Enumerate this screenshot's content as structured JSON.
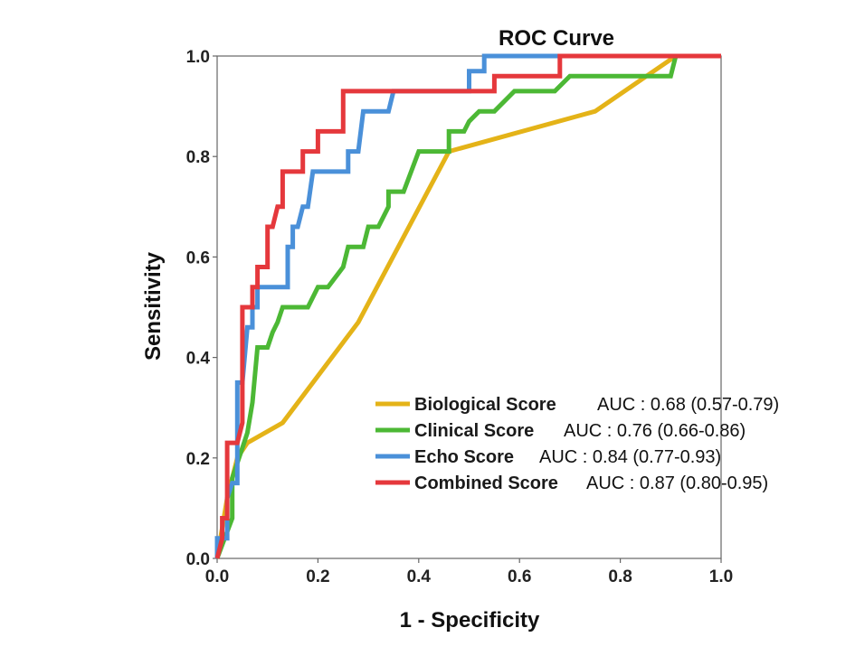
{
  "chart_data": {
    "type": "line",
    "title": "ROC Curve",
    "xlabel": "1 - Specificity",
    "ylabel": "Sensitivity",
    "xlim": [
      0,
      1
    ],
    "ylim": [
      0,
      1
    ],
    "x_ticks": [
      "0.0",
      "0.2",
      "0.4",
      "0.6",
      "0.8",
      "1.0"
    ],
    "y_ticks": [
      "0.0",
      "0.2",
      "0.4",
      "0.6",
      "0.8",
      "1.0"
    ],
    "grid": false,
    "legend_position": "bottom-right",
    "series": [
      {
        "name": "Biological Score",
        "auc_label": "AUC : 0.68 (0.57-0.79)",
        "color": "#e4b318",
        "points": [
          [
            0.0,
            0.0
          ],
          [
            0.02,
            0.12
          ],
          [
            0.04,
            0.2
          ],
          [
            0.06,
            0.23
          ],
          [
            0.13,
            0.27
          ],
          [
            0.28,
            0.47
          ],
          [
            0.46,
            0.81
          ],
          [
            0.75,
            0.89
          ],
          [
            0.91,
            1.0
          ],
          [
            1.0,
            1.0
          ]
        ]
      },
      {
        "name": "Clinical Score",
        "auc_label": "AUC : 0.76 (0.66-0.86)",
        "color": "#4cb835",
        "points": [
          [
            0.0,
            0.0
          ],
          [
            0.03,
            0.08
          ],
          [
            0.03,
            0.16
          ],
          [
            0.05,
            0.22
          ],
          [
            0.06,
            0.25
          ],
          [
            0.07,
            0.31
          ],
          [
            0.08,
            0.42
          ],
          [
            0.1,
            0.42
          ],
          [
            0.11,
            0.45
          ],
          [
            0.12,
            0.47
          ],
          [
            0.13,
            0.5
          ],
          [
            0.18,
            0.5
          ],
          [
            0.2,
            0.54
          ],
          [
            0.22,
            0.54
          ],
          [
            0.25,
            0.58
          ],
          [
            0.26,
            0.62
          ],
          [
            0.29,
            0.62
          ],
          [
            0.3,
            0.66
          ],
          [
            0.32,
            0.66
          ],
          [
            0.34,
            0.7
          ],
          [
            0.34,
            0.73
          ],
          [
            0.37,
            0.73
          ],
          [
            0.4,
            0.81
          ],
          [
            0.46,
            0.81
          ],
          [
            0.46,
            0.85
          ],
          [
            0.49,
            0.85
          ],
          [
            0.5,
            0.87
          ],
          [
            0.52,
            0.89
          ],
          [
            0.55,
            0.89
          ],
          [
            0.59,
            0.93
          ],
          [
            0.64,
            0.93
          ],
          [
            0.67,
            0.93
          ],
          [
            0.7,
            0.96
          ],
          [
            0.9,
            0.96
          ],
          [
            0.91,
            1.0
          ],
          [
            1.0,
            1.0
          ]
        ]
      },
      {
        "name": "Echo Score",
        "auc_label": "AUC : 0.84 (0.77-0.93)",
        "color": "#4a90d9",
        "points": [
          [
            0.0,
            0.0
          ],
          [
            0.0,
            0.04
          ],
          [
            0.02,
            0.04
          ],
          [
            0.02,
            0.12
          ],
          [
            0.03,
            0.15
          ],
          [
            0.04,
            0.15
          ],
          [
            0.04,
            0.35
          ],
          [
            0.05,
            0.35
          ],
          [
            0.06,
            0.46
          ],
          [
            0.07,
            0.46
          ],
          [
            0.07,
            0.5
          ],
          [
            0.08,
            0.5
          ],
          [
            0.08,
            0.54
          ],
          [
            0.14,
            0.54
          ],
          [
            0.14,
            0.62
          ],
          [
            0.15,
            0.62
          ],
          [
            0.15,
            0.66
          ],
          [
            0.16,
            0.66
          ],
          [
            0.17,
            0.7
          ],
          [
            0.18,
            0.7
          ],
          [
            0.19,
            0.77
          ],
          [
            0.26,
            0.77
          ],
          [
            0.26,
            0.81
          ],
          [
            0.28,
            0.81
          ],
          [
            0.29,
            0.89
          ],
          [
            0.34,
            0.89
          ],
          [
            0.35,
            0.93
          ],
          [
            0.5,
            0.93
          ],
          [
            0.5,
            0.97
          ],
          [
            0.53,
            0.97
          ],
          [
            0.53,
            1.0
          ],
          [
            1.0,
            1.0
          ]
        ]
      },
      {
        "name": "Combined Score",
        "auc_label": "AUC : 0.87 (0.80-0.95)",
        "color": "#e5383c",
        "points": [
          [
            0.0,
            0.0
          ],
          [
            0.01,
            0.04
          ],
          [
            0.01,
            0.08
          ],
          [
            0.02,
            0.08
          ],
          [
            0.02,
            0.23
          ],
          [
            0.04,
            0.23
          ],
          [
            0.05,
            0.27
          ],
          [
            0.05,
            0.5
          ],
          [
            0.07,
            0.5
          ],
          [
            0.07,
            0.54
          ],
          [
            0.08,
            0.54
          ],
          [
            0.08,
            0.58
          ],
          [
            0.1,
            0.58
          ],
          [
            0.1,
            0.66
          ],
          [
            0.11,
            0.66
          ],
          [
            0.12,
            0.7
          ],
          [
            0.13,
            0.7
          ],
          [
            0.13,
            0.77
          ],
          [
            0.17,
            0.77
          ],
          [
            0.17,
            0.81
          ],
          [
            0.2,
            0.81
          ],
          [
            0.2,
            0.85
          ],
          [
            0.25,
            0.85
          ],
          [
            0.25,
            0.93
          ],
          [
            0.55,
            0.93
          ],
          [
            0.55,
            0.96
          ],
          [
            0.68,
            0.96
          ],
          [
            0.68,
            1.0
          ],
          [
            1.0,
            1.0
          ]
        ]
      }
    ]
  }
}
